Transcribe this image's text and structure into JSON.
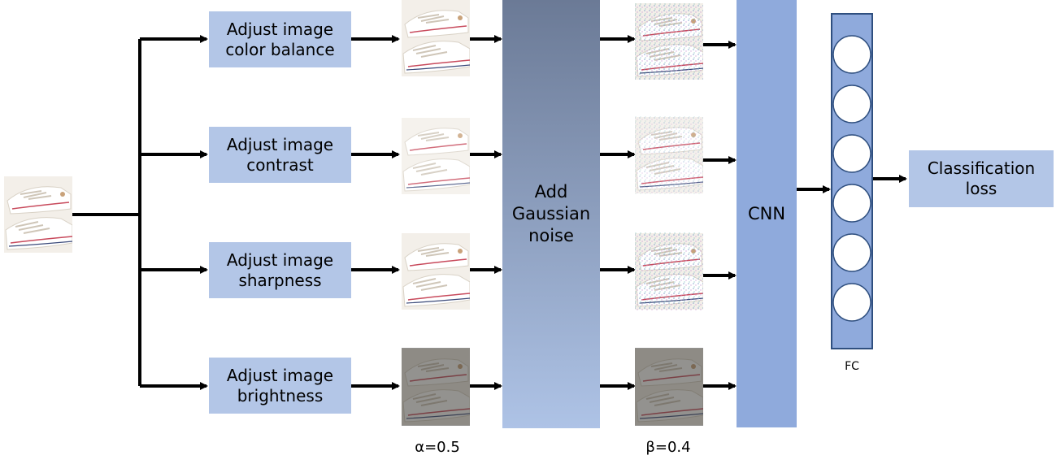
{
  "boxes": [
    {
      "text": "Adjust image\ncolor balance"
    },
    {
      "text": "Adjust image\ncontrast"
    },
    {
      "text": "Adjust image\nsharpness"
    },
    {
      "text": "Adjust image\nbrightness"
    }
  ],
  "noise_block": {
    "text": "Add\nGaussian\nnoise"
  },
  "cnn_block": {
    "text": "CNN"
  },
  "fc_label": "FC",
  "output_box": {
    "text": "Classification\nloss"
  },
  "alpha_label": "α=0.5",
  "beta_label": "β=0.4",
  "colors": {
    "box": "#b3c6e7",
    "noise_top": "#6b7a96",
    "noise_bottom": "#aec3e6",
    "cnn": "#8faadc",
    "fc": "#8faadc"
  },
  "icons": [
    "sneaker-image"
  ]
}
